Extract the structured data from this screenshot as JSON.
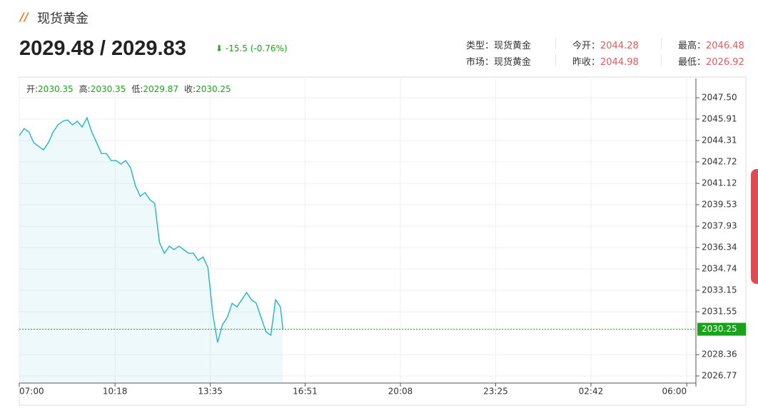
{
  "header": {
    "title": "现货黄金",
    "price": "2029.48 / 2029.83",
    "change": "-15.5 (-0.76%)"
  },
  "info": [
    [
      {
        "label": "类型：",
        "value": "现货黄金"
      },
      {
        "label": "今开：",
        "value": 2044.28
      },
      {
        "label": "最高：",
        "value": 2046.48
      }
    ],
    [
      {
        "label": "市场：",
        "value": "现货黄金"
      },
      {
        "label": "昨收：",
        "value": 2044.98
      },
      {
        "label": "最低：",
        "value": 2026.92
      }
    ]
  ],
  "chart_data": {
    "type": "line",
    "ohlc": [
      {
        "label": "开:",
        "value": 2030.35
      },
      {
        "label": "高:",
        "value": 2030.35
      },
      {
        "label": "低:",
        "value": 2029.87
      },
      {
        "label": "收:",
        "value": 2030.25
      }
    ],
    "x": [
      "07:00",
      "07:10",
      "07:20",
      "07:30",
      "07:40",
      "07:50",
      "08:00",
      "08:10",
      "08:20",
      "08:30",
      "08:40",
      "08:50",
      "09:00",
      "09:10",
      "09:20",
      "09:30",
      "09:40",
      "09:50",
      "10:00",
      "10:10",
      "10:20",
      "10:30",
      "10:40",
      "10:50",
      "11:00",
      "11:10",
      "11:20",
      "11:30",
      "11:40",
      "11:50",
      "12:00",
      "12:10",
      "12:20",
      "12:30",
      "12:40",
      "12:50",
      "13:00",
      "13:10",
      "13:20",
      "13:30",
      "13:40",
      "13:50",
      "14:00",
      "14:10",
      "14:20",
      "14:30",
      "14:40",
      "14:50",
      "15:00",
      "15:10",
      "15:20",
      "15:30",
      "15:40",
      "15:50",
      "16:00",
      "16:05"
    ],
    "series": [
      {
        "color": "#1fb5c8",
        "values": [
          2044.68,
          2045.21,
          2044.95,
          2044.15,
          2043.88,
          2043.62,
          2044.15,
          2044.95,
          2045.48,
          2045.75,
          2045.85,
          2045.48,
          2045.75,
          2045.32,
          2046.01,
          2044.95,
          2044.15,
          2043.35,
          2043.35,
          2042.82,
          2042.82,
          2042.56,
          2042.82,
          2042.29,
          2040.96,
          2040.16,
          2040.43,
          2039.9,
          2039.63,
          2036.71,
          2035.91,
          2036.44,
          2036.18,
          2036.44,
          2036.18,
          2035.91,
          2035.91,
          2035.38,
          2035.64,
          2034.85,
          2031.39,
          2029.27,
          2030.59,
          2031.13,
          2032.19,
          2031.92,
          2032.45,
          2032.99,
          2032.45,
          2032.19,
          2031.13,
          2030.06,
          2029.8,
          2032.45,
          2031.92,
          2030.25
        ]
      }
    ],
    "last_price": 2030.25,
    "last_color": "#1aa31a",
    "xlim": [
      "07:00",
      "06:19"
    ],
    "xticks": [
      "07:00",
      "10:18",
      "13:35",
      "16:51",
      "20:08",
      "23:25",
      "02:42",
      "06:00"
    ],
    "ylim": [
      2026.24,
      2048.94
    ],
    "yticks": [
      {
        "value": 2047.5,
        "label": "2047.50"
      },
      2045.91,
      2044.31,
      2042.72,
      2041.12,
      2039.53,
      2037.93,
      2036.34,
      2034.74,
      2033.15,
      2031.55,
      2028.36,
      2026.77
    ],
    "grid": true
  }
}
